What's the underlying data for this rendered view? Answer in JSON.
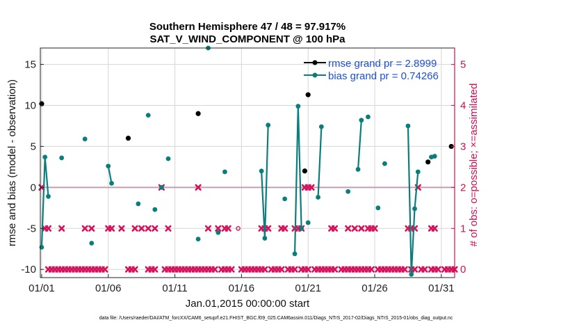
{
  "chart_data": {
    "type": "line",
    "title": "Southern Hemisphere 47 / 48 = 97.917%",
    "subtitle": "SAT_V_WIND_COMPONENT @ 100 hPa",
    "xlabel": "Jan.01,2015 00:00:00 start",
    "ylabel": "rmse and bias (model - observation)",
    "ylabel_right": "# of obs: o=possible; ×=assimilated",
    "footnote": "data file: /Users/raeder/DAI/ATM_forcXX/CAM6_setup/f.e21.FHIST_BGC.f09_025.CAM6assim.011/Diags_NTrS_2017-02/Diags_NTrS_2015-01/obs_diag_output.nc",
    "x_tick_labels": [
      "01/01",
      "01/06",
      "01/11",
      "01/16",
      "01/21",
      "01/26",
      "01/31"
    ],
    "x_tick_days": [
      1,
      6,
      11,
      16,
      21,
      26,
      31
    ],
    "xlim_days": [
      0.9,
      32.0
    ],
    "ylim": [
      -11,
      17
    ],
    "yticks": [
      -10,
      -5,
      0,
      5,
      10,
      15
    ],
    "ylim_right": [
      -0.2,
      5.4
    ],
    "yticks_right": [
      0,
      1,
      2,
      3,
      4,
      5
    ],
    "zero_line": 0,
    "grid": true,
    "legend_position": "top-right",
    "colors": {
      "rmse": "#000000",
      "bias": "#0a7d7d",
      "obs": "#d6105a",
      "zero_line": "#c0a0b0",
      "legend_text": "#1f4fd1",
      "right_axis": "#cc1155"
    },
    "series": [
      {
        "name": "rmse grand pr = 2.8999",
        "points": [
          [
            1.0,
            10.2
          ],
          [
            7.5,
            6.0
          ],
          [
            12.75,
            9.0
          ],
          [
            20.75,
            2.0
          ],
          [
            21.0,
            11.3
          ],
          [
            30.0,
            3.1
          ],
          [
            31.75,
            5.0
          ]
        ]
      },
      {
        "name": "bias grand pr = 0.74266",
        "segments": [
          [
            [
              1.0,
              -7.3
            ],
            [
              1.25,
              3.7
            ],
            [
              1.5,
              -1.1
            ]
          ],
          [
            [
              2.5,
              3.6
            ]
          ],
          [
            [
              4.25,
              5.9
            ]
          ],
          [
            [
              4.75,
              -6.8
            ]
          ],
          [
            [
              6.0,
              2.6
            ],
            [
              6.25,
              0.5
            ]
          ],
          [
            [
              8.25,
              -2.0
            ]
          ],
          [
            [
              9.0,
              8.8
            ]
          ],
          [
            [
              9.5,
              -2.7
            ]
          ],
          [
            [
              10.0,
              0.0
            ]
          ],
          [
            [
              10.5,
              3.5
            ]
          ],
          [
            [
              12.75,
              -6.3
            ]
          ],
          [
            [
              13.5,
              17.0
            ]
          ],
          [
            [
              14.25,
              -5.5
            ]
          ],
          [
            [
              14.75,
              1.9
            ]
          ],
          [
            [
              17.5,
              2.0
            ],
            [
              17.75,
              -6.2
            ],
            [
              18.0,
              7.6
            ]
          ],
          [
            [
              19.25,
              -1.4
            ]
          ],
          [
            [
              20.0,
              -8.1
            ],
            [
              20.25,
              9.9
            ],
            [
              20.5,
              -5.0
            ]
          ],
          [
            [
              21.0,
              -4.3
            ]
          ],
          [
            [
              21.75,
              -1.2
            ],
            [
              22.0,
              7.4
            ]
          ],
          [
            [
              24.0,
              -0.5
            ]
          ],
          [
            [
              24.75,
              2.2
            ],
            [
              25.0,
              8.2
            ]
          ],
          [
            [
              25.5,
              8.6
            ]
          ],
          [
            [
              26.25,
              -2.5
            ]
          ],
          [
            [
              26.75,
              2.9
            ]
          ],
          [
            [
              28.5,
              7.5
            ],
            [
              28.75,
              -10.6
            ],
            [
              29.0,
              -2.6
            ],
            [
              29.25,
              1.9
            ]
          ],
          [
            [
              30.25,
              3.7
            ],
            [
              30.5,
              3.8
            ]
          ]
        ]
      },
      {
        "name": "# of obs assimilated",
        "points": [
          [
            1.0,
            2
          ],
          [
            1.25,
            1
          ],
          [
            1.5,
            1
          ],
          [
            2.5,
            1
          ],
          [
            4.25,
            1
          ],
          [
            4.75,
            1
          ],
          [
            6.0,
            1
          ],
          [
            6.25,
            1
          ],
          [
            7.0,
            1
          ],
          [
            8.0,
            1
          ],
          [
            8.5,
            1
          ],
          [
            9.0,
            1
          ],
          [
            9.5,
            1
          ],
          [
            10.0,
            2
          ],
          [
            10.5,
            1
          ],
          [
            12.75,
            2
          ],
          [
            13.5,
            1
          ],
          [
            14.25,
            1
          ],
          [
            14.75,
            1
          ],
          [
            15.0,
            1
          ],
          [
            17.5,
            1
          ],
          [
            17.75,
            1
          ],
          [
            18.0,
            1
          ],
          [
            19.0,
            1
          ],
          [
            19.25,
            1
          ],
          [
            20.0,
            1
          ],
          [
            20.25,
            1
          ],
          [
            20.5,
            1
          ],
          [
            20.75,
            2
          ],
          [
            21.0,
            2
          ],
          [
            21.25,
            2
          ],
          [
            22.75,
            1
          ],
          [
            23.0,
            1
          ],
          [
            24.0,
            1
          ],
          [
            24.5,
            1
          ],
          [
            25.0,
            1
          ],
          [
            25.5,
            1
          ],
          [
            25.75,
            1
          ],
          [
            26.0,
            1
          ],
          [
            28.5,
            1
          ],
          [
            28.75,
            1
          ],
          [
            29.0,
            1
          ],
          [
            29.25,
            2
          ],
          [
            30.25,
            1
          ],
          [
            30.5,
            1
          ]
        ]
      },
      {
        "name": "# of obs possible",
        "points": [
          [
            15.75,
            1
          ]
        ]
      }
    ],
    "obs_zero_band_days": [
      [
        1.5,
        3.0
      ],
      [
        3.25,
        5.75
      ],
      [
        7.5,
        8.0
      ],
      [
        9.0,
        9.5
      ],
      [
        10.25,
        14.0
      ],
      [
        14.5,
        15.25
      ],
      [
        16.0,
        17.25
      ],
      [
        17.5,
        17.75
      ],
      [
        18.25,
        19.0
      ],
      [
        19.5,
        20.0
      ],
      [
        20.5,
        21.0
      ],
      [
        21.5,
        23.0
      ],
      [
        23.5,
        25.75
      ],
      [
        26.25,
        28.25
      ],
      [
        28.75,
        29.0
      ],
      [
        29.5,
        29.75
      ],
      [
        30.25,
        30.75
      ],
      [
        31.25,
        32.0
      ]
    ]
  }
}
